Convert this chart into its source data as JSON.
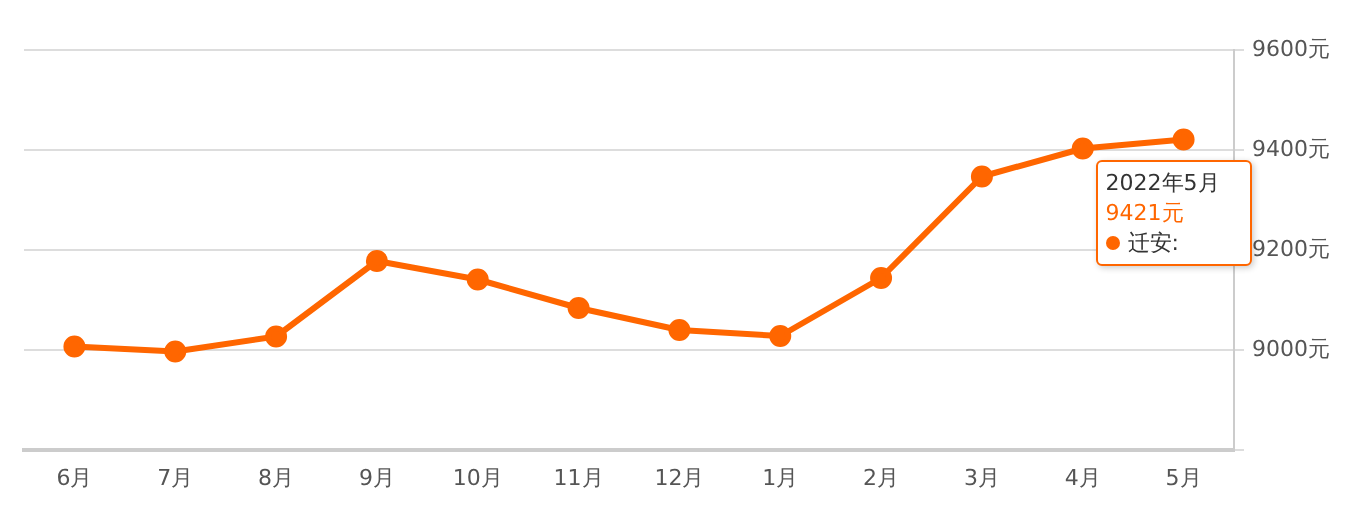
{
  "chart_data": {
    "type": "line",
    "categories": [
      "6月",
      "7月",
      "8月",
      "9月",
      "10月",
      "11月",
      "12月",
      "1月",
      "2月",
      "3月",
      "4月",
      "5月"
    ],
    "series": [
      {
        "name": "迁安:",
        "color": "#ff6600",
        "values": [
          9007,
          8997,
          9027,
          9178,
          9141,
          9084,
          9040,
          9028,
          9144,
          9347,
          9403,
          9421
        ],
        "value_labels": [
          null,
          null,
          null,
          null,
          null,
          null,
          null,
          null,
          null,
          null,
          null,
          "9421元"
        ]
      }
    ],
    "ylim": [
      8800,
      9600
    ],
    "yticks": [
      {
        "value": 8800,
        "label": null
      },
      {
        "value": 9000,
        "label": "9000元"
      },
      {
        "value": 9200,
        "label": "9200元"
      },
      {
        "value": 9400,
        "label": "9400元"
      },
      {
        "value": 9600,
        "label": "9600元"
      }
    ],
    "annotations": [
      {
        "text": "2022年5月",
        "x": "5月",
        "y": 9421
      }
    ],
    "grid": "y",
    "marker": "circle",
    "line_style": "solid",
    "legend": "right"
  }
}
